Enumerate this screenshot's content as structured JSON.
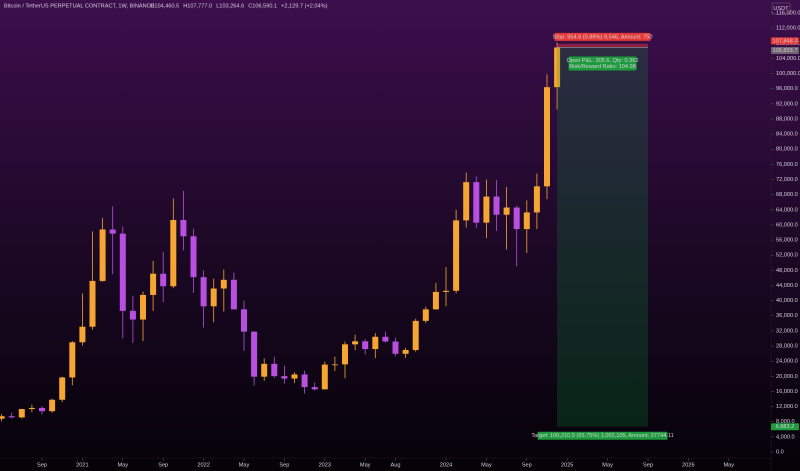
{
  "chart_data": {
    "type": "candlestick",
    "title": "Bitcoin / TetherUS PERPETUAL CONTRACT, 1W, BINANCE",
    "ohlc_legend": [
      "O104,460.5",
      "H107,777.0",
      "L103,264.6",
      "C106,590.1",
      "+2,129.7 (+2.04%)"
    ],
    "currency": "USDT",
    "up_color": "#f5a531",
    "down_color": "#b84fe0",
    "x": [
      "2020-05",
      "2020-06",
      "2020-07",
      "2020-08",
      "2020-09",
      "2020-10",
      "2020-11",
      "2020-12",
      "2021-01",
      "2021-02",
      "2021-03",
      "2021-04",
      "2021-05",
      "2021-06",
      "2021-07",
      "2021-08",
      "2021-09",
      "2021-10",
      "2021-11",
      "2021-12",
      "2022-01",
      "2022-02",
      "2022-03",
      "2022-04",
      "2022-05",
      "2022-06",
      "2022-07",
      "2022-08",
      "2022-09",
      "2022-10",
      "2022-11",
      "2022-12",
      "2023-01",
      "2023-02",
      "2023-03",
      "2023-04",
      "2023-05",
      "2023-06",
      "2023-07",
      "2023-08",
      "2023-09",
      "2023-10",
      "2023-11",
      "2023-12",
      "2024-01",
      "2024-02",
      "2024-03",
      "2024-04",
      "2024-05",
      "2024-06",
      "2024-07",
      "2024-08",
      "2024-09",
      "2024-10",
      "2024-11",
      "2024-12"
    ],
    "open": [
      8800,
      9450,
      9140,
      11350,
      11650,
      10780,
      13800,
      19700,
      28990,
      33100,
      45200,
      58800,
      57700,
      37300,
      35000,
      41500,
      47100,
      43800,
      61300,
      57000,
      46200,
      38500,
      43200,
      45500,
      37700,
      31800,
      19900,
      23300,
      20050,
      19400,
      20500,
      17150,
      16550,
      23100,
      23150,
      28450,
      29250,
      27200,
      30450,
      29200,
      25950,
      26950,
      34650,
      37700,
      42300,
      42600,
      61200,
      71300,
      60600,
      67500,
      62700,
      64600,
      58900,
      63300,
      70200,
      96400
    ],
    "high": [
      10000,
      10400,
      11400,
      12470,
      12100,
      14100,
      19900,
      29300,
      41900,
      58300,
      61800,
      64900,
      59600,
      41300,
      42400,
      50500,
      52900,
      67000,
      69000,
      59000,
      48000,
      45800,
      48200,
      47400,
      40000,
      31900,
      24700,
      25200,
      22800,
      21100,
      21500,
      18400,
      23900,
      25200,
      29200,
      31000,
      29800,
      31400,
      31800,
      30200,
      27500,
      35200,
      38400,
      44700,
      48900,
      64000,
      73800,
      72800,
      72000,
      71900,
      70000,
      65100,
      66500,
      73600,
      99800,
      108200
    ],
    "low": [
      8100,
      8900,
      8900,
      10500,
      9900,
      10400,
      13200,
      17600,
      28100,
      32300,
      45000,
      47000,
      30000,
      28800,
      29300,
      37300,
      39600,
      43300,
      53300,
      42000,
      32900,
      34300,
      37100,
      37600,
      26700,
      17600,
      18800,
      19600,
      18100,
      18200,
      15500,
      16300,
      16500,
      21400,
      19500,
      26900,
      25800,
      24800,
      28900,
      25300,
      24900,
      26500,
      34100,
      37600,
      38500,
      41900,
      59300,
      59200,
      56500,
      58400,
      53500,
      49100,
      52600,
      58900,
      66800,
      90500
    ],
    "close": [
      9450,
      9140,
      11350,
      11650,
      10780,
      13800,
      19700,
      28990,
      33100,
      45200,
      58800,
      57700,
      37300,
      35000,
      41500,
      47100,
      43800,
      61300,
      57000,
      46200,
      38500,
      43200,
      45500,
      37700,
      31800,
      19900,
      23300,
      20050,
      19400,
      20500,
      17150,
      16550,
      23100,
      23150,
      28450,
      29250,
      27200,
      30450,
      29200,
      25950,
      26950,
      34650,
      37700,
      42300,
      42600,
      61200,
      71300,
      60600,
      67500,
      62700,
      64600,
      58900,
      63300,
      70200,
      96400,
      106893.7
    ],
    "ylim": [
      0,
      116000
    ],
    "yticks": [
      {
        "value": 0,
        "label": "0.0"
      },
      {
        "value": 4000,
        "label": "4,000.0"
      },
      {
        "value": 8000,
        "label": "8,000.0"
      },
      {
        "value": 12000,
        "label": "12,000.0"
      },
      {
        "value": 16000,
        "label": "16,000.0"
      },
      {
        "value": 20000,
        "label": "20,000.0"
      },
      {
        "value": 24000,
        "label": "24,000.0"
      },
      {
        "value": 28000,
        "label": "28,000.0"
      },
      {
        "value": 32000,
        "label": "32,000.0"
      },
      {
        "value": 36000,
        "label": "36,000.0"
      },
      {
        "value": 40000,
        "label": "40,000.0"
      },
      {
        "value": 44000,
        "label": "44,000.0"
      },
      {
        "value": 48000,
        "label": "48,000.0"
      },
      {
        "value": 52000,
        "label": "52,000.0"
      },
      {
        "value": 56000,
        "label": "56,000.0"
      },
      {
        "value": 60000,
        "label": "60,000.0"
      },
      {
        "value": 64000,
        "label": "64,000.0"
      },
      {
        "value": 68000,
        "label": "68,000.0"
      },
      {
        "value": 72000,
        "label": "72,000.0"
      },
      {
        "value": 76000,
        "label": "76,000.0"
      },
      {
        "value": 80000,
        "label": "80,000.0"
      },
      {
        "value": 84000,
        "label": "84,000.0"
      },
      {
        "value": 88000,
        "label": "88,000.0"
      },
      {
        "value": 92000,
        "label": "92,000.0"
      },
      {
        "value": 96000,
        "label": "96,000.0"
      },
      {
        "value": 100000,
        "label": "100,000.0"
      },
      {
        "value": 104000,
        "label": "104,000.0"
      },
      {
        "value": 108000,
        "label": "108,000.0"
      },
      {
        "value": 112000,
        "label": "112,000.0"
      },
      {
        "value": 116000,
        "label": "116,000.0"
      }
    ],
    "xticks": [
      {
        "value": "2020-09",
        "label": "Sep"
      },
      {
        "value": "2021-01",
        "label": "2021"
      },
      {
        "value": "2021-05",
        "label": "May"
      },
      {
        "value": "2021-09",
        "label": "Sep"
      },
      {
        "value": "2022-01",
        "label": "2022"
      },
      {
        "value": "2022-05",
        "label": "May"
      },
      {
        "value": "2022-09",
        "label": "Sep"
      },
      {
        "value": "2023-01",
        "label": "2023"
      },
      {
        "value": "2023-05",
        "label": "May"
      },
      {
        "value": "2023-08",
        "label": "Aug"
      },
      {
        "value": "2024-01",
        "label": "2024"
      },
      {
        "value": "2024-05",
        "label": "May"
      },
      {
        "value": "2024-09",
        "label": "Sep"
      },
      {
        "value": "2025-01",
        "label": "2025"
      },
      {
        "value": "2025-05",
        "label": "May"
      },
      {
        "value": "2025-09",
        "label": "Sep"
      },
      {
        "value": "2026-01",
        "label": "2026"
      },
      {
        "value": "2026-05",
        "label": "May"
      }
    ],
    "position": {
      "start": "2024-12",
      "end": "2025-09",
      "stop": {
        "value": 107848.3,
        "label": "107,848.3"
      },
      "entry": {
        "value": 106893.7,
        "label": "106,893.7"
      },
      "target": {
        "value": 6683.2,
        "label": "6,683.2"
      },
      "stop_text": "Stop: 954.6 (0.89%) 9,546, Amount: 750",
      "pnl_text": "Open P&L: 305.6, Qty: 0.362",
      "rr_text": "Risk/Reward Ratio: 104.98",
      "target_text": "Target: 100,210.5 (93.75%) 1,002,105, Amount: 27744.11"
    }
  }
}
